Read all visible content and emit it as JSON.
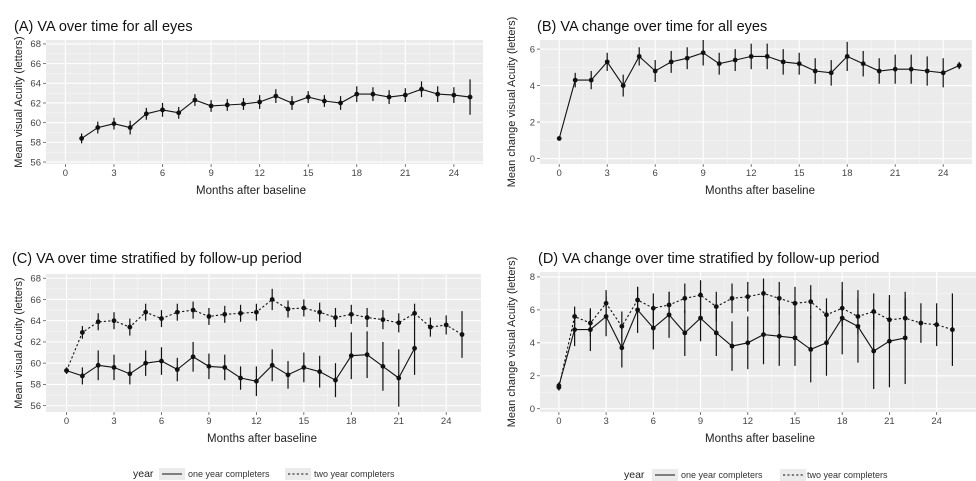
{
  "chart_data": [
    {
      "type": "line",
      "title": "(A) VA over time for all eyes",
      "xlabel": "Months after baseline",
      "ylabel": "Mean visual Acuity (letters)",
      "xlim": [
        -1.2,
        25.8
      ],
      "ylim": [
        55.8,
        68.4
      ],
      "xticks": [
        0,
        3,
        6,
        9,
        12,
        15,
        18,
        21,
        24
      ],
      "yticks": [
        56,
        58,
        60,
        62,
        64,
        66,
        68
      ],
      "grid": true,
      "series": [
        {
          "line": "solid",
          "x": [
            1,
            2,
            3,
            4,
            5,
            6,
            7,
            8,
            9,
            10,
            11,
            12,
            13,
            14,
            15,
            16,
            17,
            18,
            19,
            20,
            21,
            22,
            23,
            24,
            25
          ],
          "y": [
            58.4,
            59.5,
            59.9,
            59.5,
            60.9,
            61.3,
            61.0,
            62.3,
            61.7,
            61.8,
            61.9,
            62.1,
            62.7,
            62.0,
            62.6,
            62.2,
            62.0,
            62.9,
            62.9,
            62.6,
            62.8,
            63.4,
            62.9,
            62.8,
            62.6
          ],
          "err": [
            0.5,
            0.6,
            0.6,
            0.7,
            0.6,
            0.7,
            0.6,
            0.6,
            0.6,
            0.6,
            0.6,
            0.7,
            0.7,
            0.7,
            0.6,
            0.6,
            0.7,
            0.8,
            0.7,
            0.7,
            0.7,
            0.8,
            0.8,
            0.8,
            1.8
          ]
        }
      ]
    },
    {
      "type": "line",
      "title": "(B) VA change over time for all eyes",
      "xlabel": "Months after baseline",
      "ylabel": "Mean change visual Acuity (letters)",
      "xlim": [
        -1.2,
        25.8
      ],
      "ylim": [
        -0.3,
        6.5
      ],
      "xticks": [
        0,
        3,
        6,
        9,
        12,
        15,
        18,
        21,
        24
      ],
      "yticks": [
        0,
        2,
        4,
        6
      ],
      "grid": true,
      "series": [
        {
          "line": "solid",
          "x": [
            0,
            1,
            2,
            3,
            4,
            5,
            6,
            7,
            8,
            9,
            10,
            11,
            12,
            13,
            14,
            15,
            16,
            17,
            18,
            19,
            20,
            21,
            22,
            23,
            24,
            25
          ],
          "y": [
            1.1,
            4.3,
            4.3,
            5.3,
            4.0,
            5.6,
            4.8,
            5.3,
            5.5,
            5.8,
            5.2,
            5.4,
            5.6,
            5.6,
            5.3,
            5.2,
            4.8,
            4.7,
            5.6,
            5.2,
            4.8,
            4.9,
            4.9,
            4.8,
            4.7,
            5.1
          ],
          "err": [
            0.1,
            0.4,
            0.5,
            0.5,
            0.6,
            0.5,
            0.6,
            0.6,
            0.6,
            0.7,
            0.6,
            0.6,
            0.7,
            0.7,
            0.7,
            0.6,
            0.7,
            0.7,
            0.8,
            0.7,
            0.7,
            0.8,
            0.8,
            0.8,
            0.8,
            0.2
          ]
        }
      ]
    },
    {
      "type": "line",
      "title": "(C) VA over time stratified by follow-up period",
      "xlabel": "Months after baseline",
      "ylabel": "Mean visual Acuity (letters)",
      "xlim": [
        -1.3,
        26.2
      ],
      "ylim": [
        55.4,
        68.4
      ],
      "xticks": [
        0,
        3,
        6,
        9,
        12,
        15,
        18,
        21,
        24
      ],
      "yticks": [
        56,
        58,
        60,
        62,
        64,
        66,
        68
      ],
      "grid": true,
      "series": [
        {
          "name": "one year completers",
          "line": "solid",
          "x": [
            0,
            1,
            2,
            3,
            4,
            5,
            6,
            7,
            8,
            9,
            10,
            11,
            12,
            13,
            14,
            15,
            16,
            17,
            18,
            19,
            20,
            21,
            22
          ],
          "y": [
            59.3,
            58.8,
            59.8,
            59.6,
            59.0,
            60.0,
            60.2,
            59.4,
            60.6,
            59.7,
            59.6,
            58.6,
            58.3,
            59.8,
            58.9,
            59.6,
            59.2,
            58.4,
            60.7,
            60.8,
            59.7,
            58.6,
            61.4
          ],
          "err": [
            0.3,
            0.8,
            1.4,
            1.2,
            1.0,
            1.2,
            1.3,
            1.1,
            1.4,
            1.2,
            1.2,
            1.1,
            1.4,
            1.5,
            1.3,
            1.4,
            1.5,
            1.6,
            2.2,
            2.2,
            2.3,
            2.7,
            2.5
          ]
        },
        {
          "name": "two year completers",
          "line": "dotted",
          "x": [
            0,
            1,
            2,
            3,
            4,
            5,
            6,
            7,
            8,
            9,
            10,
            11,
            12,
            13,
            14,
            15,
            16,
            17,
            18,
            19,
            20,
            21,
            22,
            23,
            24,
            25
          ],
          "y": [
            59.3,
            62.9,
            63.9,
            64.0,
            63.4,
            64.8,
            64.2,
            64.8,
            65.0,
            64.4,
            64.6,
            64.7,
            64.8,
            66.0,
            65.1,
            65.2,
            64.8,
            64.3,
            64.6,
            64.3,
            64.1,
            63.8,
            64.7,
            63.4,
            63.6,
            62.7
          ],
          "err": [
            0.3,
            0.6,
            0.8,
            0.8,
            0.8,
            0.8,
            0.8,
            0.8,
            0.8,
            0.8,
            0.8,
            0.8,
            0.8,
            1.0,
            0.8,
            0.8,
            0.9,
            0.9,
            0.9,
            0.9,
            0.9,
            0.9,
            0.9,
            0.9,
            0.9,
            2.2
          ]
        }
      ],
      "legend": {
        "title": "year",
        "entries": [
          "one year completers",
          "two year completers"
        ],
        "placement": "bottom"
      }
    },
    {
      "type": "line",
      "title": "(D) VA change over time stratified by follow-up period",
      "xlabel": "Months after baseline",
      "ylabel": "Mean change visual Acuity (letters)",
      "xlim": [
        -1.2,
        26.5
      ],
      "ylim": [
        -0.2,
        8.3
      ],
      "xticks": [
        0,
        3,
        6,
        9,
        12,
        15,
        18,
        21,
        24
      ],
      "yticks": [
        0,
        2,
        4,
        6,
        8
      ],
      "grid": true,
      "series": [
        {
          "name": "one year completers",
          "line": "solid",
          "x": [
            0,
            1,
            2,
            3,
            4,
            5,
            6,
            7,
            8,
            9,
            10,
            11,
            12,
            13,
            14,
            15,
            16,
            17,
            18,
            19,
            20,
            21,
            22
          ],
          "y": [
            1.4,
            4.8,
            4.8,
            5.6,
            3.7,
            6.0,
            4.9,
            5.7,
            4.6,
            5.5,
            4.6,
            3.8,
            4.0,
            4.5,
            4.4,
            4.3,
            3.6,
            4.0,
            5.5,
            5.0,
            3.5,
            4.1,
            4.3
          ],
          "err": [
            0.2,
            1.0,
            1.3,
            1.2,
            1.2,
            1.4,
            1.3,
            1.4,
            1.4,
            1.4,
            1.4,
            1.5,
            1.6,
            1.8,
            1.8,
            1.7,
            2.0,
            2.0,
            2.2,
            2.2,
            2.3,
            2.8,
            2.8
          ]
        },
        {
          "name": "two year completers",
          "line": "dotted",
          "x": [
            0,
            1,
            2,
            3,
            4,
            5,
            6,
            7,
            8,
            9,
            10,
            11,
            12,
            13,
            14,
            15,
            16,
            17,
            18,
            19,
            20,
            21,
            22,
            23,
            24,
            25
          ],
          "y": [
            1.3,
            5.6,
            5.2,
            6.4,
            5.0,
            6.6,
            6.1,
            6.3,
            6.7,
            6.9,
            6.2,
            6.7,
            6.8,
            7.0,
            6.7,
            6.4,
            6.5,
            5.7,
            6.1,
            5.6,
            5.9,
            5.4,
            5.5,
            5.2,
            5.1,
            4.8
          ],
          "err": [
            0.2,
            0.6,
            0.8,
            0.8,
            0.9,
            0.8,
            0.9,
            0.8,
            0.9,
            0.9,
            0.9,
            0.9,
            0.9,
            0.9,
            1.0,
            1.0,
            1.0,
            1.0,
            1.1,
            1.1,
            1.1,
            1.2,
            1.2,
            1.2,
            1.3,
            2.2
          ]
        }
      ],
      "legend": {
        "title": "year",
        "entries": [
          "one year completers",
          "two year completers"
        ],
        "placement": "bottom"
      }
    }
  ]
}
